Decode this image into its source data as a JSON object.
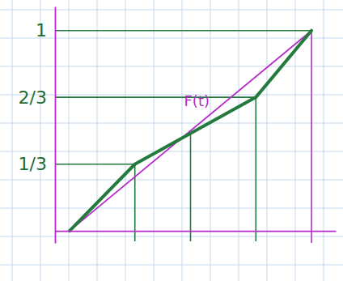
{
  "chart_data": {
    "type": "line",
    "xlim": [
      -0.06,
      1.1
    ],
    "ylim": [
      -0.06,
      1.12
    ],
    "xticks": [],
    "yticks": [
      {
        "value": 0.333,
        "label": "1/3"
      },
      {
        "value": 0.667,
        "label": "2/3"
      },
      1
    ],
    "tick_labels": "y",
    "series": [
      {
        "name": "F(t)",
        "color": "#b52bc9",
        "x": [
          0,
          1
        ],
        "values": [
          0,
          1
        ]
      },
      {
        "color": "#237a3c",
        "x": [
          0,
          0.27,
          0.77,
          1
        ],
        "values": [
          0,
          0.333,
          0.667,
          1
        ]
      }
    ],
    "guides_x": [
      0.27,
      0.5,
      0.77
    ]
  }
}
